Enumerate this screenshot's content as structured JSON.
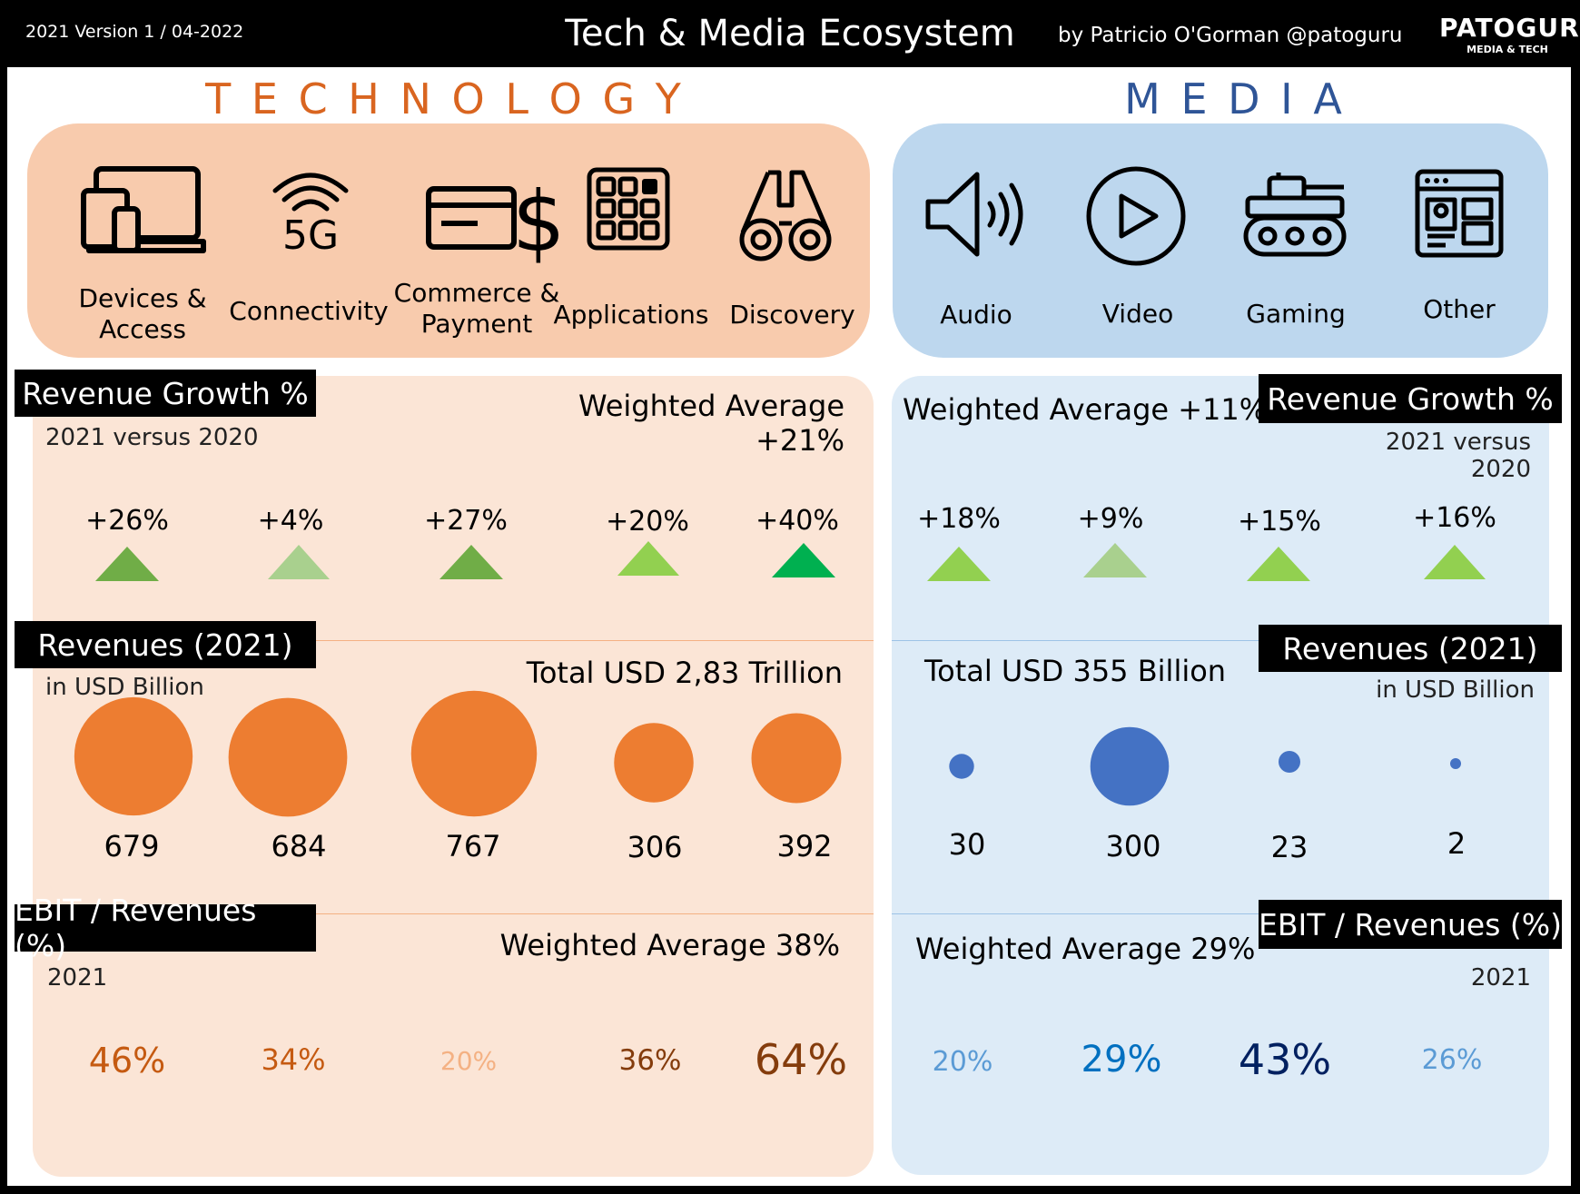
{
  "header": {
    "version": "2021 Version 1 / 04-2022",
    "title": "Tech & Media Ecosystem",
    "author": "by Patricio O'Gorman @patoguru",
    "logo_main": "PATOGURU",
    "logo_sub": "MEDIA & TECH"
  },
  "technology": {
    "heading": "T E C H N O L O G Y",
    "categories": [
      {
        "label_1": "Devices &",
        "label_2": "Access",
        "icon": "devices-icon",
        "growth": "+26%",
        "revenue": "679",
        "ebit": "46%"
      },
      {
        "label_1": "Connectivity",
        "label_2": "",
        "icon": "5g-icon",
        "growth": "+4%",
        "revenue": "684",
        "ebit": "34%"
      },
      {
        "label_1": "Commerce &",
        "label_2": "Payment",
        "icon": "payment-card-icon",
        "growth": "+27%",
        "revenue": "767",
        "ebit": "20%"
      },
      {
        "label_1": "Applications",
        "label_2": "",
        "icon": "apps-grid-icon",
        "growth": "+20%",
        "revenue": "306",
        "ebit": "36%"
      },
      {
        "label_1": "Discovery",
        "label_2": "",
        "icon": "binoculars-icon",
        "growth": "+40%",
        "revenue": "392",
        "ebit": "64%"
      }
    ],
    "growth_title": "Revenue Growth %",
    "growth_sub": "2021 versus 2020",
    "growth_avg": "Weighted Average +21%",
    "rev_title": "Revenues (2021)",
    "rev_sub": "in USD Billion",
    "rev_total": "Total USD 2,83 Trillion",
    "ebit_title": "EBIT / Revenues (%)",
    "ebit_sub": "2021",
    "ebit_avg": "Weighted Average 38%"
  },
  "media": {
    "heading": "M E D I A",
    "categories": [
      {
        "label": "Audio",
        "icon": "speaker-icon",
        "growth": "+18%",
        "revenue": "30",
        "ebit": "20%"
      },
      {
        "label": "Video",
        "icon": "play-icon",
        "growth": "+9%",
        "revenue": "300",
        "ebit": "29%"
      },
      {
        "label": "Gaming",
        "icon": "tank-icon",
        "growth": "+15%",
        "revenue": "23",
        "ebit": "43%"
      },
      {
        "label": "Other",
        "icon": "browser-window-icon",
        "growth": "+16%",
        "revenue": "2",
        "ebit": "26%"
      }
    ],
    "growth_title": "Revenue Growth %",
    "growth_sub": "2021 versus 2020",
    "growth_avg": "Weighted Average +11%",
    "rev_title": "Revenues (2021)",
    "rev_sub": "in USD Billion",
    "rev_total": "Total USD 355 Billion",
    "ebit_title": "EBIT / Revenues (%)",
    "ebit_sub": "2021",
    "ebit_avg": "Weighted Average 29%"
  },
  "colors": {
    "tech_accent": "#D96520",
    "tech_band": "#F8CBAD",
    "tech_panel": "#FBE5D6",
    "media_accent": "#2F5597",
    "media_band": "#BDD7EE",
    "media_panel": "#DDEBF7",
    "bubble_tech": "#ED7D31",
    "bubble_media": "#4472C4"
  }
}
